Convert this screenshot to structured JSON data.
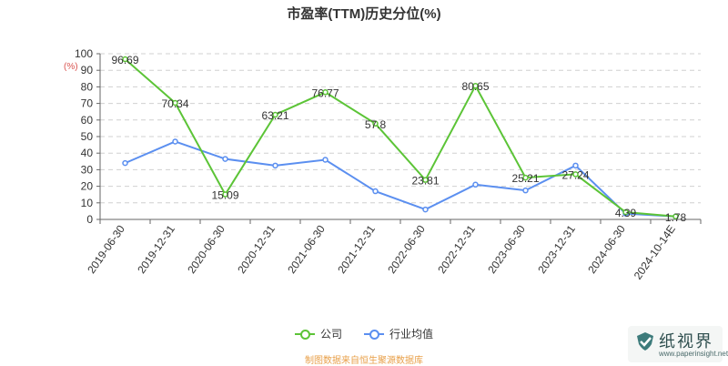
{
  "title": "市盈率(TTM)历史分位(%)",
  "unit_label": "(%)",
  "source_note": "制图数据来自恒生聚源数据库",
  "watermark": {
    "brand": "纸视界",
    "url": "www.paperinsight.net"
  },
  "colors": {
    "company": "#5cc437",
    "industry": "#5b8ff0",
    "grid": "#d0d0d0",
    "axis": "#666666"
  },
  "chart_data": {
    "type": "line",
    "title": "市盈率(TTM)历史分位(%)",
    "categories": [
      "2019-06-30",
      "2019-12-31",
      "2020-06-30",
      "2020-12-31",
      "2021-06-30",
      "2021-12-31",
      "2022-06-30",
      "2022-12-31",
      "2023-06-30",
      "2023-12-31",
      "2024-06-30",
      "2024-10-14E"
    ],
    "series": [
      {
        "name": "公司",
        "values": [
          96.69,
          70.34,
          15.09,
          63.21,
          76.77,
          57.8,
          23.81,
          80.65,
          25.21,
          27.24,
          4.39,
          1.78
        ],
        "labels": [
          "96.69",
          "70.34",
          "15.09",
          "63.21",
          "76.77",
          "57.8",
          "23.81",
          "80.65",
          "25.21",
          "27.24",
          "4.39",
          "1.78"
        ]
      },
      {
        "name": "行业均值",
        "values": [
          34,
          47,
          36.5,
          32.5,
          36,
          17,
          6,
          21,
          17.5,
          32.5,
          3.5,
          1.8
        ]
      }
    ],
    "ylim": [
      0,
      100
    ],
    "yticks": [
      0,
      10,
      20,
      30,
      40,
      50,
      60,
      70,
      80,
      90,
      100
    ],
    "grid": true,
    "legend_position": "bottom-center"
  }
}
